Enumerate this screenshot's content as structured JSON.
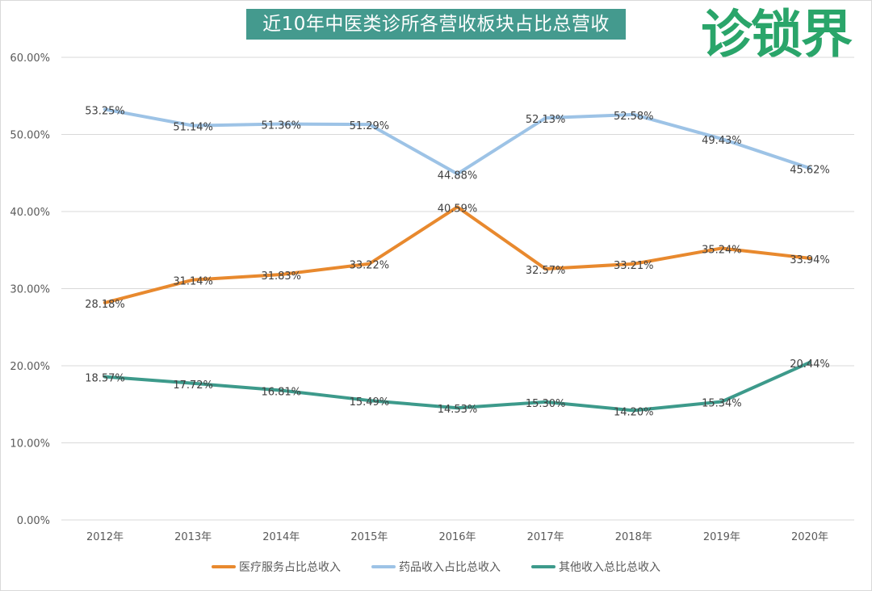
{
  "chart_data": {
    "type": "line",
    "title": "近10年中医类诊所各营收板块占比总营收",
    "categories": [
      "2012年",
      "2013年",
      "2014年",
      "2015年",
      "2016年",
      "2017年",
      "2018年",
      "2019年",
      "2020年"
    ],
    "ylim": [
      0,
      60
    ],
    "yticks": [
      "0.00%",
      "10.00%",
      "20.00%",
      "30.00%",
      "40.00%",
      "50.00%",
      "60.00%"
    ],
    "grid": true,
    "legend_position": "bottom",
    "series": [
      {
        "name": "医疗服务占比总收入",
        "color": "#e8892e",
        "values": [
          28.18,
          31.14,
          31.83,
          33.22,
          40.59,
          32.57,
          33.21,
          35.24,
          33.94
        ]
      },
      {
        "name": "药品收入占比总收入",
        "color": "#9dc3e6",
        "values": [
          53.25,
          51.14,
          51.36,
          51.29,
          44.88,
          52.13,
          52.58,
          49.43,
          45.62
        ]
      },
      {
        "name": "其他收入总比总收入",
        "color": "#3d9a8b",
        "values": [
          18.57,
          17.72,
          16.81,
          15.49,
          14.53,
          15.3,
          14.2,
          15.34,
          20.44
        ]
      }
    ]
  },
  "logo": {
    "text": "诊锁界",
    "color": "#2aa56a"
  }
}
